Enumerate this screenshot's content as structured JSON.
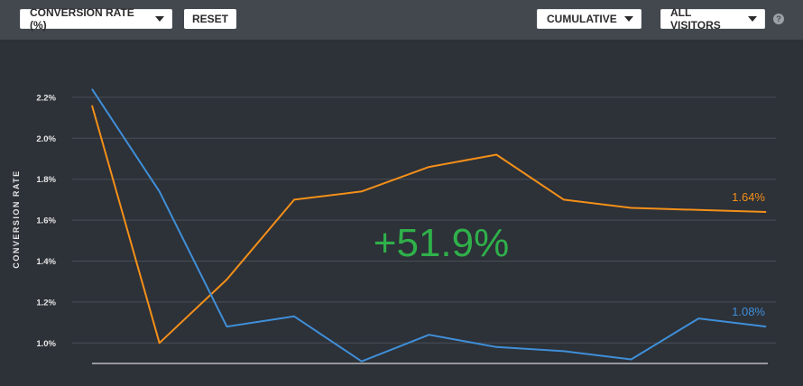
{
  "toolbar": {
    "metric_label": "CONVERSION RATE (%)",
    "reset_label": "RESET",
    "mode_label": "CUMULATIVE",
    "segment_label": "ALL VISITORS",
    "help_glyph": "?"
  },
  "chart_data": {
    "type": "line",
    "ylabel": "CONVERSION RATE",
    "yticks": [
      "1.0%",
      "1.2%",
      "1.4%",
      "1.6%",
      "1.8%",
      "2.0%",
      "2.2%"
    ],
    "ylim": [
      0.9,
      2.2
    ],
    "grid": true,
    "x": [
      1,
      2,
      3,
      4,
      5,
      6,
      7,
      8,
      9,
      10,
      11
    ],
    "series": [
      {
        "color": "#f39019",
        "values": [
          2.16,
          1.0,
          1.31,
          1.7,
          1.74,
          1.86,
          1.92,
          1.7,
          1.66,
          1.65,
          1.64
        ],
        "end_label": "1.64%"
      },
      {
        "color": "#3f8fd8",
        "values": [
          2.24,
          1.74,
          1.08,
          1.13,
          0.91,
          1.04,
          0.98,
          0.96,
          0.92,
          1.12,
          1.08
        ],
        "end_label": "1.08%"
      }
    ],
    "annotation": {
      "text": "+51.9%",
      "color": "#2fb04a"
    }
  }
}
